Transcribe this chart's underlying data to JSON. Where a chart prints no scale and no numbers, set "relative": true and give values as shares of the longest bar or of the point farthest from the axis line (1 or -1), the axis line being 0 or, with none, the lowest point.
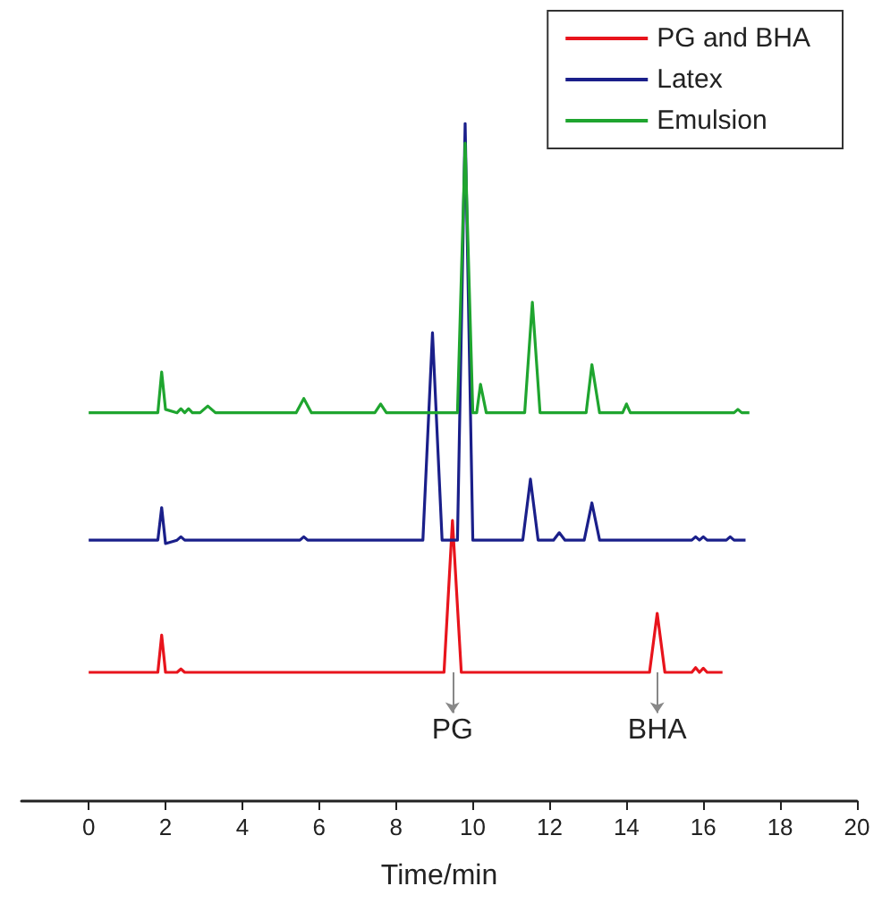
{
  "chart_data": {
    "type": "line",
    "relative": true,
    "xlabel": "Time/min",
    "legend": "top right",
    "grid": false,
    "marker": "none",
    "xlim": [
      -1.75,
      20
    ],
    "xticks": [
      0,
      2,
      4,
      6,
      8,
      10,
      12,
      14,
      16,
      18,
      20
    ],
    "series": [
      {
        "name": "PG and BHA",
        "color": "#e8141c",
        "x": [
          0,
          1.8,
          1.9,
          2.0,
          2.3,
          2.4,
          2.5,
          9.25,
          9.47,
          9.7,
          14.6,
          14.8,
          15.0,
          15.7,
          15.8,
          15.9,
          16.0,
          16.1,
          16.5
        ],
        "values": [
          0.19,
          0.19,
          0.245,
          0.19,
          0.19,
          0.195,
          0.19,
          0.19,
          0.414,
          0.19,
          0.19,
          0.277,
          0.19,
          0.19,
          0.197,
          0.19,
          0.196,
          0.19,
          0.19
        ]
      },
      {
        "name": "Latex",
        "color": "#1a1f8a",
        "x": [
          0,
          1.8,
          1.9,
          2.0,
          2.3,
          2.4,
          2.5,
          5.5,
          5.6,
          5.7,
          8.7,
          8.95,
          9.2,
          9.6,
          9.8,
          10.0,
          11.3,
          11.5,
          11.7,
          12.1,
          12.25,
          12.4,
          12.9,
          13.1,
          13.3,
          15.7,
          15.8,
          15.9,
          16.0,
          16.1,
          16.6,
          16.7,
          16.8,
          17.1
        ],
        "values": [
          0.385,
          0.385,
          0.433,
          0.38,
          0.385,
          0.39,
          0.385,
          0.385,
          0.39,
          0.385,
          0.385,
          0.691,
          0.385,
          0.385,
          1,
          0.385,
          0.385,
          0.475,
          0.385,
          0.385,
          0.396,
          0.385,
          0.385,
          0.44,
          0.385,
          0.385,
          0.39,
          0.385,
          0.39,
          0.385,
          0.385,
          0.39,
          0.385,
          0.385
        ]
      },
      {
        "name": "Emulsion",
        "color": "#1fa52f",
        "x": [
          0,
          1.8,
          1.9,
          2.0,
          2.3,
          2.4,
          2.5,
          2.6,
          2.7,
          2.9,
          3.1,
          3.3,
          5.4,
          5.6,
          5.8,
          7.45,
          7.6,
          7.75,
          9.6,
          9.8,
          10.0,
          10.1,
          10.2,
          10.35,
          11.35,
          11.55,
          11.75,
          12.95,
          13.1,
          13.3,
          13.9,
          14.0,
          14.1,
          16.8,
          16.9,
          17.0,
          17.2
        ],
        "values": [
          0.573,
          0.573,
          0.633,
          0.578,
          0.573,
          0.579,
          0.573,
          0.579,
          0.573,
          0.573,
          0.583,
          0.573,
          0.573,
          0.594,
          0.573,
          0.573,
          0.586,
          0.573,
          0.573,
          0.971,
          0.573,
          0.573,
          0.615,
          0.573,
          0.573,
          0.736,
          0.573,
          0.573,
          0.644,
          0.573,
          0.573,
          0.586,
          0.573,
          0.573,
          0.578,
          0.573,
          0.573
        ]
      }
    ],
    "annotations": [
      {
        "text": "PG",
        "x": 9.47,
        "y": 0.19
      },
      {
        "text": "BHA",
        "x": 14.8,
        "y": 0.19
      }
    ]
  }
}
